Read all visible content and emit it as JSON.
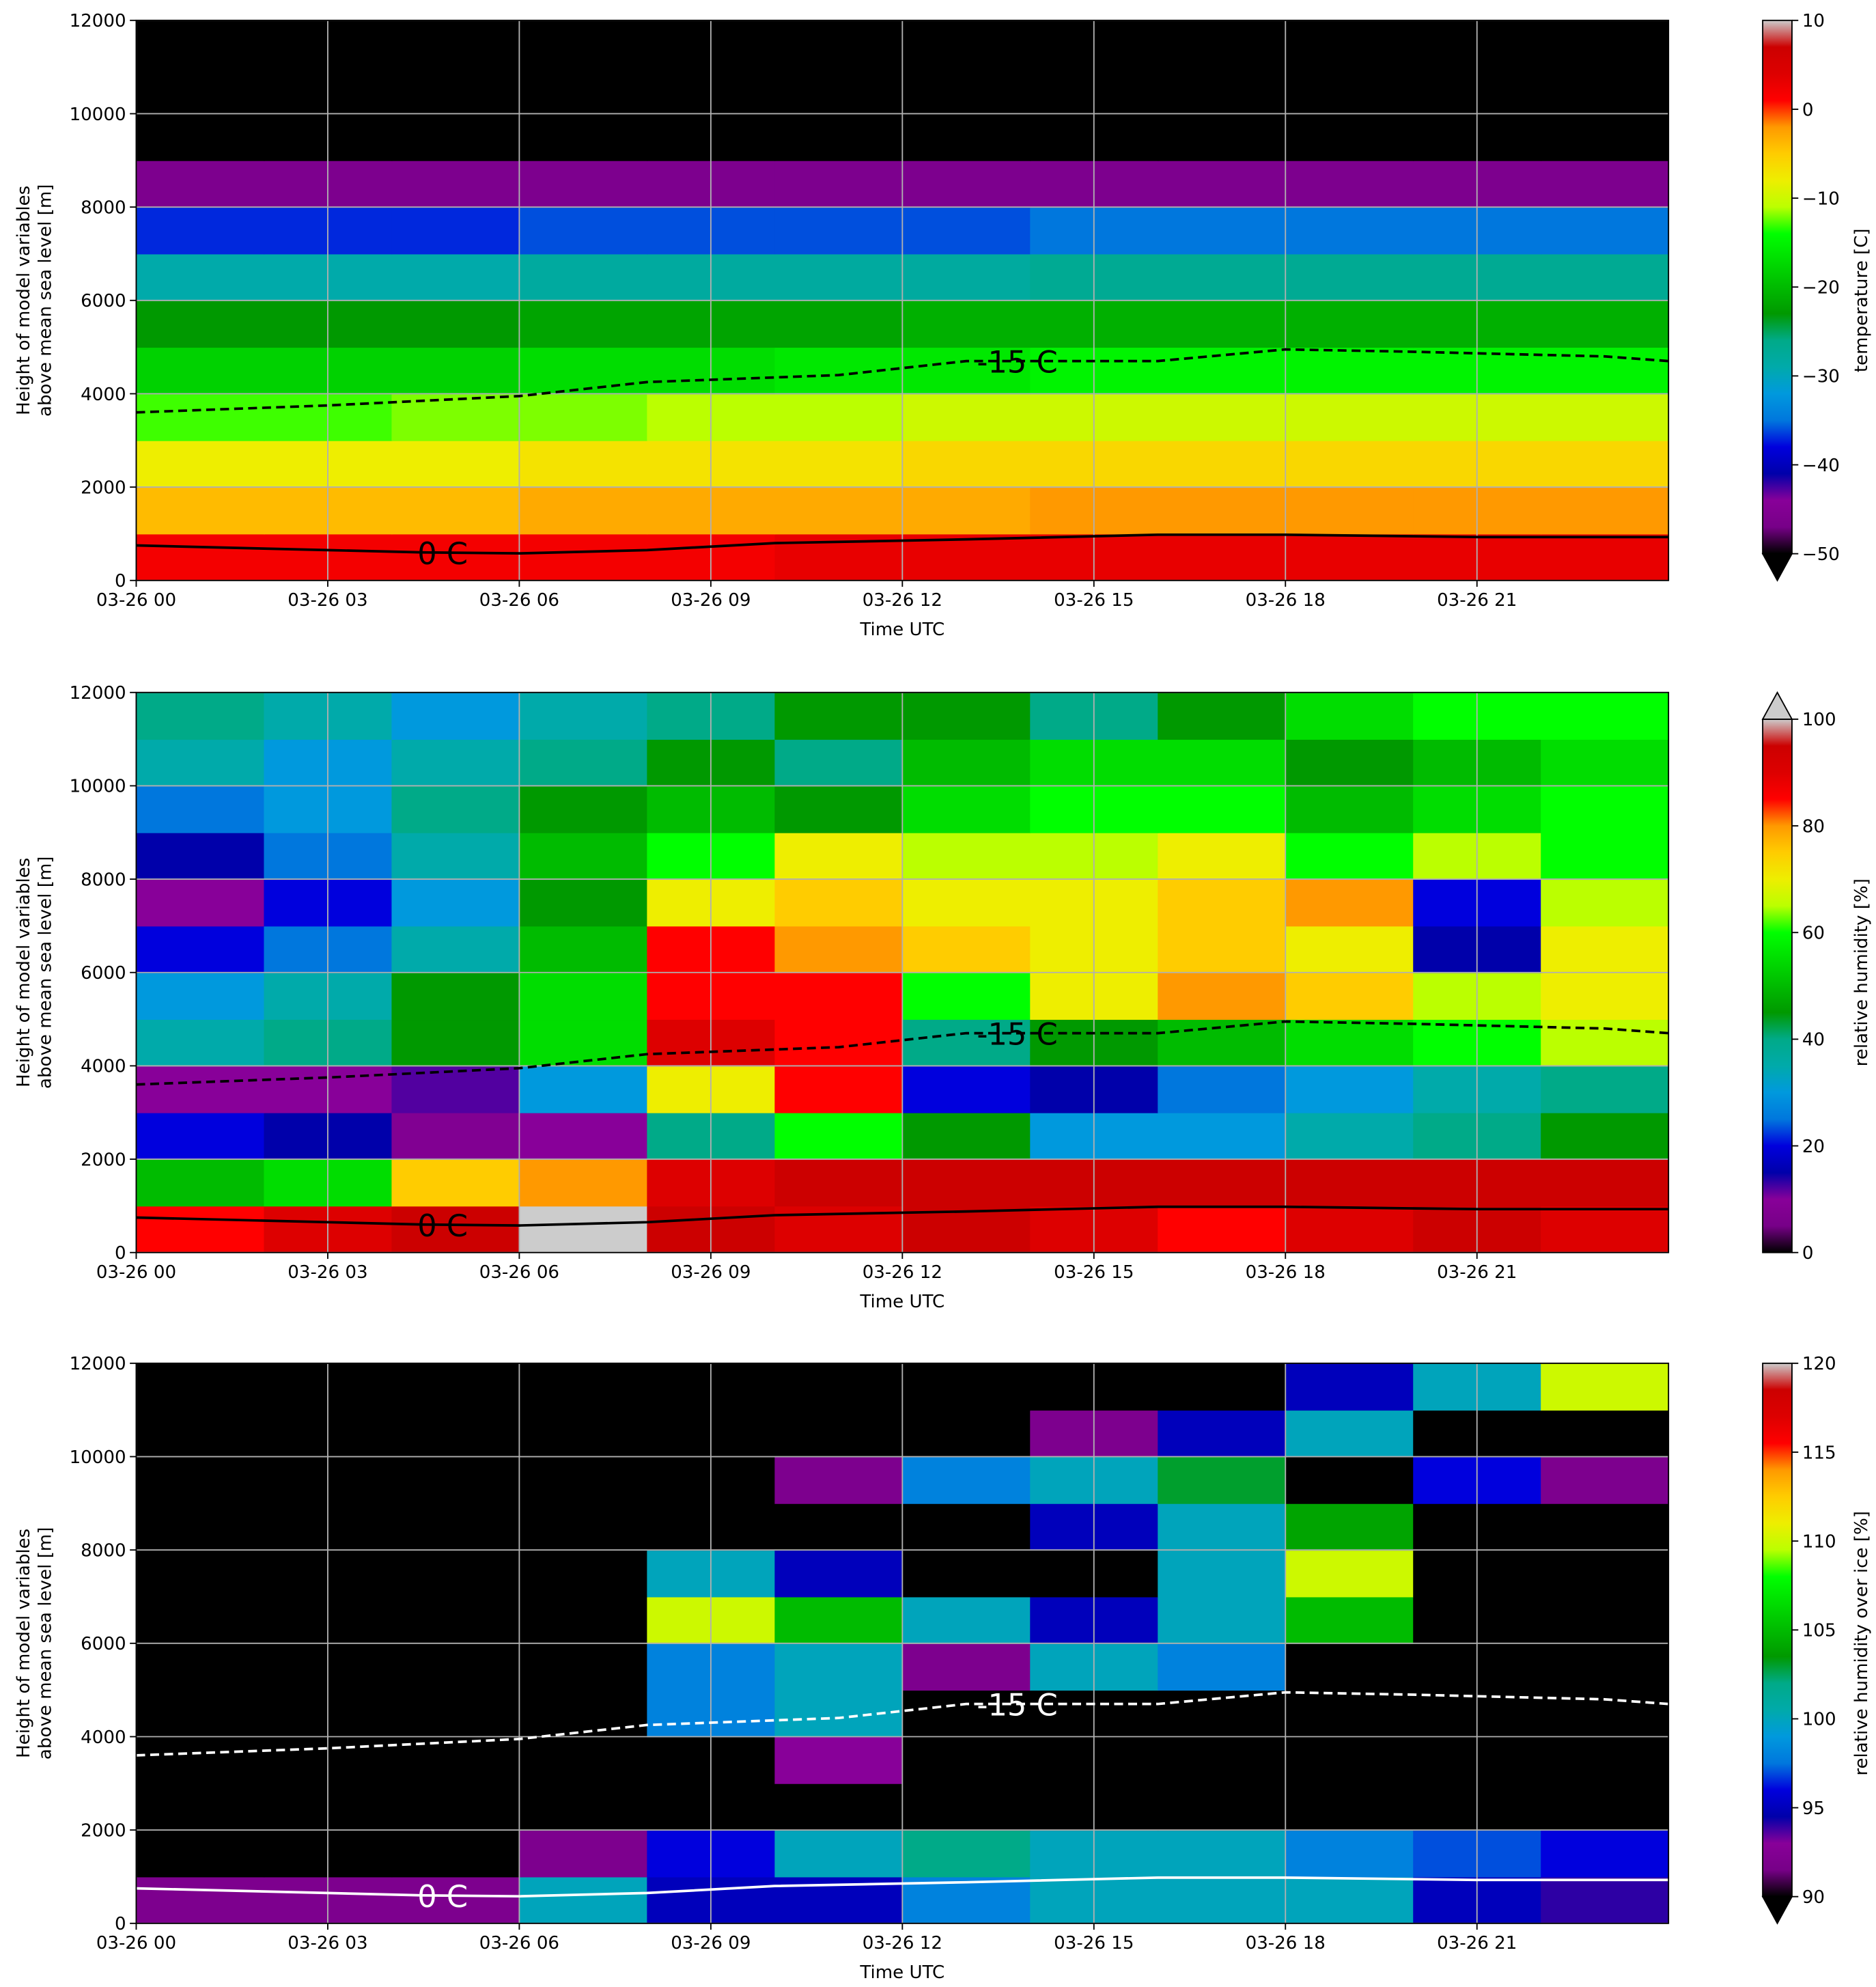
{
  "contours": [
    {
      "label": "-15 C",
      "dashed": true,
      "x": [
        0,
        3,
        6,
        8,
        11,
        13,
        16,
        18,
        20,
        23,
        24
      ],
      "y": [
        3600,
        3750,
        3950,
        4250,
        4400,
        4700,
        4700,
        4950,
        4900,
        4800,
        4700
      ]
    },
    {
      "label": "0 C",
      "dashed": false,
      "x": [
        0,
        3,
        4.5,
        6,
        8,
        10,
        13,
        16,
        18,
        21,
        24
      ],
      "y": [
        750,
        650,
        600,
        580,
        650,
        800,
        880,
        980,
        980,
        930,
        930
      ]
    }
  ],
  "chart_data": [
    {
      "type": "heatmap",
      "colormap": "nipy_spectral",
      "grid": true,
      "contour_color": "#000000",
      "xlabel": "Time UTC",
      "ylabel": [
        "Height of model variables",
        "above mean sea level [m]"
      ],
      "xlim": [
        0,
        24
      ],
      "ylim": [
        0,
        12000
      ],
      "xticks": [
        {
          "value": 0,
          "label": "03-26 00"
        },
        {
          "value": 3,
          "label": "03-26 03"
        },
        {
          "value": 6,
          "label": "03-26 06"
        },
        {
          "value": 9,
          "label": "03-26 09"
        },
        {
          "value": 12,
          "label": "03-26 12"
        },
        {
          "value": 15,
          "label": "03-26 15"
        },
        {
          "value": 18,
          "label": "03-26 18"
        },
        {
          "value": 21,
          "label": "03-26 21"
        }
      ],
      "yticks": [
        0,
        2000,
        4000,
        6000,
        8000,
        10000,
        12000
      ],
      "x": [
        1,
        3,
        5,
        7,
        9,
        11,
        13,
        15,
        17,
        19,
        21,
        23
      ],
      "y": [
        500,
        1500,
        2500,
        3500,
        4500,
        5500,
        6500,
        7500,
        8500,
        9500,
        10500,
        11500
      ],
      "values": [
        [
          2,
          2,
          2,
          2,
          2,
          3,
          3,
          3,
          3,
          3,
          3,
          3
        ],
        [
          -4,
          -4,
          -4,
          -3,
          -3,
          -3,
          -3,
          -2,
          -2,
          -2,
          -2,
          -2
        ],
        [
          -8,
          -8,
          -8,
          -7,
          -7,
          -7,
          -6,
          -6,
          -6,
          -6,
          -6,
          -6
        ],
        [
          -13,
          -13,
          -12,
          -12,
          -11,
          -11,
          -10,
          -10,
          -10,
          -10,
          -10,
          -10
        ],
        [
          -18,
          -18,
          -18,
          -17,
          -17,
          -16,
          -16,
          -15,
          -15,
          -15,
          -15,
          -15
        ],
        [
          -23,
          -23,
          -23,
          -22,
          -22,
          -22,
          -21,
          -21,
          -21,
          -21,
          -21,
          -21
        ],
        [
          -29,
          -29,
          -29,
          -28,
          -28,
          -28,
          -28,
          -27,
          -27,
          -27,
          -27,
          -27
        ],
        [
          -37,
          -37,
          -37,
          -36,
          -36,
          -36,
          -36,
          -35,
          -35,
          -35,
          -35,
          -35
        ],
        [
          -46,
          -46,
          -46,
          -46,
          -46,
          -46,
          -46,
          -46,
          -46,
          -46,
          -46,
          -46
        ],
        [
          -55,
          -55,
          -55,
          -55,
          -55,
          -55,
          -55,
          -55,
          -55,
          -55,
          -55,
          -55
        ],
        [
          -58,
          -58,
          -58,
          -58,
          -58,
          -58,
          -58,
          -58,
          -58,
          -58,
          -58,
          -58
        ],
        [
          -60,
          -60,
          -60,
          -60,
          -60,
          -60,
          -60,
          -60,
          -60,
          -60,
          -60,
          -60
        ]
      ],
      "colorbar": {
        "label": "temperature [C]",
        "lim": [
          -50,
          10
        ],
        "extend": "min",
        "ticks": [
          {
            "value": -50,
            "label": "−50"
          },
          {
            "value": -40,
            "label": "−40"
          },
          {
            "value": -30,
            "label": "−30"
          },
          {
            "value": -20,
            "label": "−20"
          },
          {
            "value": -10,
            "label": "−10"
          },
          0,
          10
        ]
      }
    },
    {
      "type": "heatmap",
      "colormap": "nipy_spectral",
      "grid": true,
      "contour_color": "#000000",
      "xlabel": "Time UTC",
      "ylabel": [
        "Height of model variables",
        "above mean sea level [m]"
      ],
      "xlim": [
        0,
        24
      ],
      "ylim": [
        0,
        12000
      ],
      "xticks": [
        {
          "value": 0,
          "label": "03-26 00"
        },
        {
          "value": 3,
          "label": "03-26 03"
        },
        {
          "value": 6,
          "label": "03-26 06"
        },
        {
          "value": 9,
          "label": "03-26 09"
        },
        {
          "value": 12,
          "label": "03-26 12"
        },
        {
          "value": 15,
          "label": "03-26 15"
        },
        {
          "value": 18,
          "label": "03-26 18"
        },
        {
          "value": 21,
          "label": "03-26 21"
        }
      ],
      "yticks": [
        0,
        2000,
        4000,
        6000,
        8000,
        10000,
        12000
      ],
      "x": [
        1,
        3,
        5,
        7,
        9,
        11,
        13,
        15,
        17,
        19,
        21,
        23
      ],
      "y": [
        500,
        1500,
        2500,
        3500,
        4500,
        5500,
        6500,
        7500,
        8500,
        9500,
        10500,
        11500
      ],
      "values": [
        [
          85,
          90,
          95,
          100,
          95,
          90,
          95,
          90,
          85,
          90,
          95,
          90
        ],
        [
          50,
          55,
          75,
          80,
          90,
          95,
          95,
          95,
          95,
          95,
          95,
          95
        ],
        [
          20,
          15,
          8,
          10,
          40,
          60,
          45,
          30,
          30,
          35,
          40,
          45
        ],
        [
          10,
          10,
          12,
          30,
          70,
          85,
          20,
          15,
          25,
          30,
          35,
          40
        ],
        [
          35,
          40,
          45,
          55,
          90,
          85,
          40,
          45,
          50,
          55,
          60,
          65
        ],
        [
          30,
          35,
          45,
          55,
          85,
          85,
          60,
          70,
          80,
          75,
          65,
          70
        ],
        [
          20,
          25,
          35,
          50,
          85,
          80,
          75,
          70,
          75,
          70,
          15,
          70
        ],
        [
          10,
          20,
          30,
          45,
          70,
          75,
          70,
          70,
          75,
          80,
          20,
          65
        ],
        [
          15,
          25,
          35,
          50,
          60,
          70,
          65,
          65,
          70,
          60,
          65,
          60
        ],
        [
          25,
          30,
          40,
          45,
          50,
          45,
          55,
          60,
          60,
          50,
          55,
          60
        ],
        [
          35,
          30,
          35,
          40,
          45,
          40,
          50,
          55,
          55,
          45,
          50,
          55
        ],
        [
          40,
          35,
          30,
          35,
          40,
          45,
          45,
          40,
          45,
          55,
          60,
          60
        ]
      ],
      "colorbar": {
        "label": "relative humidity [%]",
        "lim": [
          0,
          100
        ],
        "extend": "max",
        "ticks": [
          0,
          20,
          40,
          60,
          80,
          100
        ]
      }
    },
    {
      "type": "heatmap",
      "colormap": "nipy_spectral",
      "grid": true,
      "contour_color": "#ffffff",
      "xlabel": "Time UTC",
      "ylabel": [
        "Height of model variables",
        "above mean sea level [m]"
      ],
      "xlim": [
        0,
        24
      ],
      "ylim": [
        0,
        12000
      ],
      "xticks": [
        {
          "value": 0,
          "label": "03-26 00"
        },
        {
          "value": 3,
          "label": "03-26 03"
        },
        {
          "value": 6,
          "label": "03-26 06"
        },
        {
          "value": 9,
          "label": "03-26 09"
        },
        {
          "value": 12,
          "label": "03-26 12"
        },
        {
          "value": 15,
          "label": "03-26 15"
        },
        {
          "value": 18,
          "label": "03-26 18"
        },
        {
          "value": 21,
          "label": "03-26 21"
        }
      ],
      "yticks": [
        0,
        2000,
        4000,
        6000,
        8000,
        10000,
        12000
      ],
      "x": [
        1,
        3,
        5,
        7,
        9,
        11,
        13,
        15,
        17,
        19,
        21,
        23
      ],
      "y": [
        500,
        1500,
        2500,
        3500,
        4500,
        5500,
        6500,
        7500,
        8500,
        9500,
        10500,
        11500
      ],
      "values": [
        [
          92,
          92,
          92,
          100,
          95,
          95,
          98,
          100,
          100,
          100,
          95,
          94
        ],
        [
          80,
          80,
          80,
          92,
          96,
          100,
          102,
          100,
          100,
          98,
          97,
          96
        ],
        [
          80,
          80,
          80,
          80,
          80,
          80,
          80,
          80,
          80,
          80,
          80,
          80
        ],
        [
          80,
          80,
          80,
          80,
          80,
          93,
          80,
          80,
          80,
          80,
          80,
          80
        ],
        [
          80,
          80,
          80,
          80,
          98,
          100,
          80,
          80,
          80,
          80,
          80,
          80
        ],
        [
          80,
          80,
          80,
          80,
          98,
          100,
          92,
          100,
          98,
          80,
          80,
          80
        ],
        [
          80,
          80,
          80,
          80,
          110,
          105,
          100,
          95,
          100,
          105,
          80,
          80
        ],
        [
          80,
          80,
          80,
          80,
          100,
          95,
          80,
          80,
          100,
          110,
          80,
          80
        ],
        [
          80,
          80,
          80,
          80,
          80,
          80,
          80,
          95,
          100,
          104,
          80,
          80
        ],
        [
          80,
          80,
          80,
          80,
          80,
          92,
          98,
          100,
          103,
          80,
          96,
          92
        ],
        [
          80,
          80,
          80,
          80,
          80,
          80,
          80,
          92,
          95,
          100,
          80,
          80
        ],
        [
          80,
          80,
          80,
          80,
          80,
          80,
          80,
          80,
          80,
          95,
          100,
          110
        ]
      ],
      "colorbar": {
        "label": "relative humidity over ice [%]",
        "lim": [
          90,
          120
        ],
        "extend": "min",
        "ticks": [
          90,
          95,
          100,
          105,
          110,
          115,
          120
        ]
      }
    }
  ]
}
